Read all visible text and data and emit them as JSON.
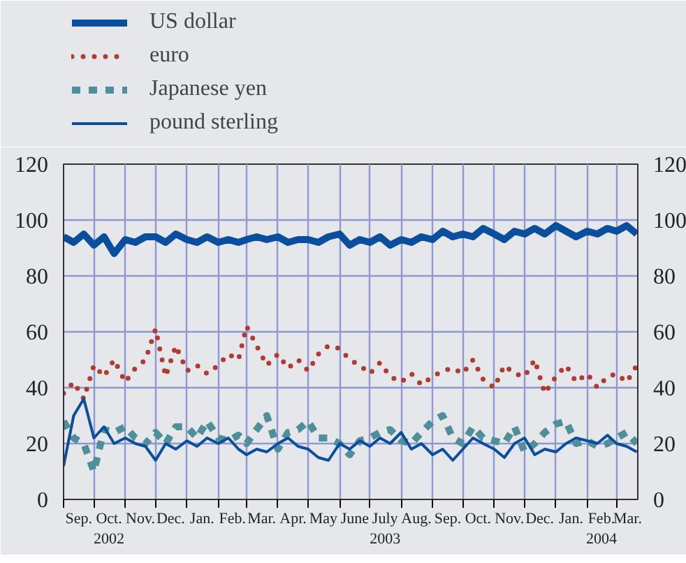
{
  "chart_data": {
    "type": "line",
    "x": [
      "2002-09-01",
      "2002-09-11",
      "2002-09-21",
      "2002-10-01",
      "2002-10-11",
      "2002-10-21",
      "2002-11-01",
      "2002-11-11",
      "2002-11-21",
      "2002-12-01",
      "2002-12-11",
      "2002-12-21",
      "2003-01-01",
      "2003-01-11",
      "2003-01-21",
      "2003-02-01",
      "2003-02-11",
      "2003-02-21",
      "2003-03-01",
      "2003-03-11",
      "2003-03-21",
      "2003-04-01",
      "2003-04-11",
      "2003-04-21",
      "2003-05-01",
      "2003-05-11",
      "2003-05-21",
      "2003-06-01",
      "2003-06-11",
      "2003-06-21",
      "2003-07-01",
      "2003-07-11",
      "2003-07-21",
      "2003-08-01",
      "2003-08-11",
      "2003-08-21",
      "2003-09-01",
      "2003-09-11",
      "2003-09-21",
      "2003-10-01",
      "2003-10-11",
      "2003-10-21",
      "2003-11-01",
      "2003-11-11",
      "2003-11-21",
      "2003-12-01",
      "2003-12-11",
      "2003-12-21",
      "2004-01-01",
      "2004-01-11",
      "2004-01-21",
      "2004-02-01",
      "2004-02-11",
      "2004-02-21",
      "2004-03-01",
      "2004-03-11",
      "2004-03-21"
    ],
    "series": [
      {
        "name": "US dollar",
        "color": "#0a4f9e",
        "line_style": "solid",
        "values": [
          94,
          92,
          95,
          91,
          94,
          88,
          93,
          92,
          94,
          94,
          92,
          95,
          93,
          92,
          94,
          92,
          93,
          92,
          93,
          94,
          93,
          94,
          92,
          93,
          93,
          92,
          94,
          95,
          91,
          93,
          92,
          94,
          91,
          93,
          92,
          94,
          93,
          96,
          94,
          95,
          94,
          97,
          95,
          93,
          96,
          95,
          97,
          95,
          98,
          96,
          94,
          96,
          95,
          97,
          96,
          98,
          95
        ]
      },
      {
        "name": "euro",
        "color": "#b23a2e",
        "line_style": "dotted",
        "values": [
          38,
          42,
          36,
          48,
          44,
          50,
          42,
          47,
          50,
          61,
          44,
          55,
          46,
          48,
          45,
          48,
          52,
          50,
          62,
          55,
          48,
          52,
          47,
          50,
          46,
          52,
          55,
          54,
          50,
          48,
          45,
          49,
          44,
          42,
          45,
          41,
          44,
          46,
          47,
          45,
          50,
          43,
          40,
          48,
          45,
          44,
          50,
          38,
          44,
          48,
          42,
          45,
          40,
          44,
          45,
          42,
          48
        ]
      },
      {
        "name": "Japanese yen",
        "color": "#4f8f99",
        "line_style": "dashed",
        "values": [
          28,
          22,
          20,
          10,
          25,
          24,
          26,
          22,
          20,
          24,
          20,
          26,
          26,
          22,
          28,
          22,
          21,
          23,
          20,
          25,
          30,
          18,
          24,
          25,
          28,
          22,
          22,
          20,
          16,
          21,
          22,
          24,
          25,
          21,
          20,
          24,
          28,
          30,
          22,
          20,
          26,
          22,
          21,
          20,
          26,
          17,
          20,
          24,
          27,
          28,
          20,
          21,
          19,
          20,
          22,
          24,
          20
        ]
      },
      {
        "name": "pound sterling",
        "color": "#0a4f9e",
        "line_style": "solid",
        "values": [
          12,
          30,
          36,
          22,
          26,
          20,
          22,
          20,
          19,
          14,
          20,
          18,
          21,
          19,
          22,
          20,
          22,
          18,
          16,
          18,
          17,
          20,
          22,
          19,
          18,
          15,
          14,
          20,
          18,
          21,
          19,
          22,
          20,
          24,
          18,
          20,
          16,
          18,
          14,
          18,
          22,
          20,
          18,
          15,
          20,
          22,
          16,
          18,
          17,
          20,
          22,
          21,
          20,
          23,
          20,
          19,
          17
        ]
      }
    ],
    "xlim": [
      "2002-09-01",
      "2004-03-22"
    ],
    "xticks": [
      {
        "value": "2002-09-01",
        "label": null
      },
      {
        "value": "2002-09-16",
        "label": "Sep."
      },
      {
        "value": "2002-10-01",
        "label": null
      },
      {
        "value": "2002-10-16",
        "label": "Oct.\n2002"
      },
      {
        "value": "2002-11-01",
        "label": null
      },
      {
        "value": "2002-11-16",
        "label": "Nov."
      },
      {
        "value": "2002-12-01",
        "label": null
      },
      {
        "value": "2002-12-16",
        "label": "Dec."
      },
      {
        "value": "2003-01-01",
        "label": null
      },
      {
        "value": "2003-01-16",
        "label": "Jan."
      },
      {
        "value": "2003-02-01",
        "label": null
      },
      {
        "value": "2003-02-15",
        "label": "Feb."
      },
      {
        "value": "2003-03-01",
        "label": null
      },
      {
        "value": "2003-03-16",
        "label": "Mar."
      },
      {
        "value": "2003-04-01",
        "label": null
      },
      {
        "value": "2003-04-16",
        "label": "Apr."
      },
      {
        "value": "2003-05-01",
        "label": null
      },
      {
        "value": "2003-05-16",
        "label": "May"
      },
      {
        "value": "2003-06-01",
        "label": null
      },
      {
        "value": "2003-06-16",
        "label": "June"
      },
      {
        "value": "2003-07-01",
        "label": null
      },
      {
        "value": "2003-07-16",
        "label": "July\n2003"
      },
      {
        "value": "2003-08-01",
        "label": null
      },
      {
        "value": "2003-08-16",
        "label": "Aug."
      },
      {
        "value": "2003-09-01",
        "label": null
      },
      {
        "value": "2003-09-16",
        "label": "Sep."
      },
      {
        "value": "2003-10-01",
        "label": null
      },
      {
        "value": "2003-10-16",
        "label": "Oct."
      },
      {
        "value": "2003-11-01",
        "label": null
      },
      {
        "value": "2003-11-16",
        "label": "Nov."
      },
      {
        "value": "2003-12-01",
        "label": null
      },
      {
        "value": "2003-12-16",
        "label": "Dec."
      },
      {
        "value": "2004-01-01",
        "label": null
      },
      {
        "value": "2004-01-16",
        "label": "Jan."
      },
      {
        "value": "2004-02-01",
        "label": null
      },
      {
        "value": "2004-02-15",
        "label": "Feb.\n2004"
      },
      {
        "value": "2004-03-01",
        "label": null
      },
      {
        "value": "2004-03-12",
        "label": "Mar."
      }
    ],
    "ylim": [
      0,
      120
    ],
    "yticks": [
      0,
      20,
      40,
      60,
      80,
      100,
      120
    ],
    "y2lim": [
      0,
      120
    ],
    "y2ticks": [
      0,
      20,
      40,
      60,
      80,
      100,
      120
    ],
    "grid": true,
    "legend": "top left"
  }
}
